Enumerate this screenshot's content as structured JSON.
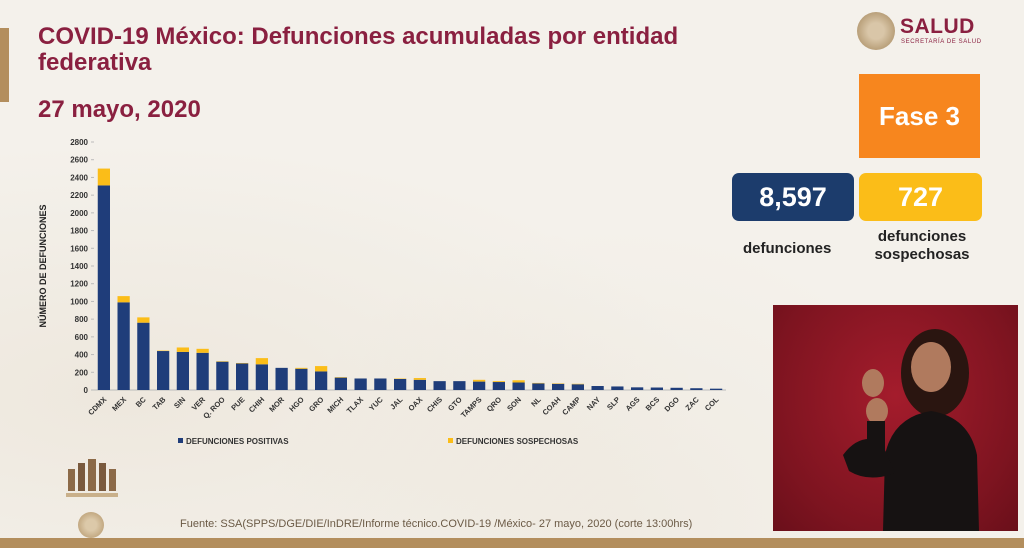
{
  "header": {
    "title": "COVID-19 México: Defunciones acumuladas por entidad federativa",
    "date": "27 mayo, 2020"
  },
  "logo": {
    "name": "SALUD",
    "subtitle": "SECRETARÍA DE SALUD"
  },
  "stats": {
    "phase": "Fase 3",
    "deaths_value": "8,597",
    "deaths_label": "defunciones",
    "suspected_value": "727",
    "suspected_label": "defunciones sospechosas"
  },
  "footer": {
    "source": "Fuente: SSA(SPPS/DGE/DIE/InDRE/Informe técnico.COVID-19 /México- 27 mayo, 2020 (corte 13:00hrs)"
  },
  "colors": {
    "accent": "#8a2040",
    "positive": "#1f3d7a",
    "suspected": "#fbbd18",
    "phase": "#f7861e",
    "gold": "#b38e5d"
  },
  "chart_data": {
    "type": "bar",
    "stacked": true,
    "ylabel": "NÚMERO DE DEFUNCIONES",
    "xlabel": "",
    "ylim": [
      0,
      2800
    ],
    "yticks": [
      0,
      200,
      400,
      600,
      800,
      1000,
      1200,
      1400,
      1600,
      1800,
      2000,
      2200,
      2400,
      2600,
      2800
    ],
    "legend_position": "bottom",
    "categories": [
      "CDMX",
      "MEX",
      "BC",
      "TAB",
      "SIN",
      "VER",
      "Q. ROO",
      "PUE",
      "CHIH",
      "MOR",
      "HGO",
      "GRO",
      "MICH",
      "TLAX",
      "YUC",
      "JAL",
      "OAX",
      "CHIS",
      "GTO",
      "TAMPS",
      "QRO",
      "SON",
      "NL",
      "COAH",
      "CAMP",
      "NAY",
      "SLP",
      "AGS",
      "BCS",
      "DGO",
      "ZAC",
      "COL"
    ],
    "series": [
      {
        "name": "DEFUNCIONES POSITIVAS",
        "values": [
          2310,
          990,
          760,
          440,
          430,
          420,
          320,
          300,
          290,
          250,
          240,
          210,
          140,
          130,
          130,
          125,
          115,
          100,
          100,
          95,
          90,
          85,
          75,
          70,
          65,
          45,
          40,
          30,
          28,
          25,
          20,
          15
        ]
      },
      {
        "name": "DEFUNCIONES SOSPECHOSAS",
        "values": [
          190,
          70,
          60,
          5,
          50,
          45,
          5,
          5,
          70,
          0,
          10,
          60,
          5,
          0,
          0,
          5,
          20,
          0,
          0,
          20,
          10,
          25,
          5,
          5,
          5,
          0,
          0,
          0,
          0,
          0,
          0,
          0
        ]
      }
    ]
  }
}
